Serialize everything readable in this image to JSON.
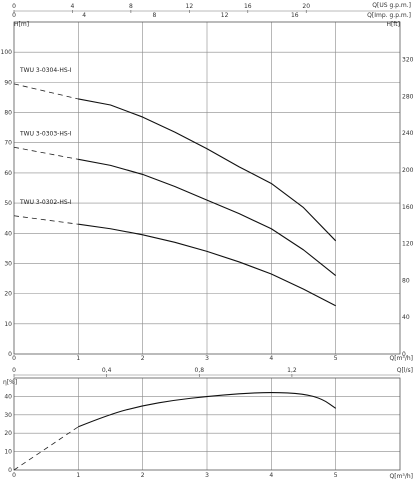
{
  "chart_data": [
    {
      "type": "line",
      "title": "",
      "xlabel": "Q[m³/h]",
      "ylabel": "H[m]",
      "ylabel_right": "H[ft]",
      "top_axis_1_label": "Q[US g.p.m.]",
      "top_axis_2_label": "Q[Imp. g.p.m.]",
      "xlim": [
        0,
        6
      ],
      "ylim": [
        0,
        110
      ],
      "x_ticks": [
        "0",
        "1",
        "2",
        "3",
        "4",
        "5"
      ],
      "y_ticks": [
        "0",
        "10",
        "20",
        "30",
        "40",
        "50",
        "60",
        "70",
        "80",
        "90",
        "100"
      ],
      "y_right_ticks": [
        "0",
        "40",
        "80",
        "120",
        "160",
        "200",
        "240",
        "280",
        "320"
      ],
      "top_us_ticks": [
        "0",
        "4",
        "8",
        "12",
        "16",
        "20"
      ],
      "top_imp_ticks": [
        "0",
        "4",
        "8",
        "12",
        "16"
      ],
      "grid": true,
      "series": [
        {
          "name": "TWU 3-0304-HS-I",
          "x": [
            1.0,
            1.5,
            2.0,
            2.5,
            3.0,
            3.5,
            4.0,
            4.5,
            5.0
          ],
          "y": [
            84.5,
            82.5,
            78.5,
            73.5,
            68.0,
            62.0,
            56.5,
            48.5,
            37.5
          ],
          "extrapolation": {
            "x": [
              0,
              1.0
            ],
            "y": [
              89.5,
              84.5
            ]
          }
        },
        {
          "name": "TWU 3-0303-HS-I",
          "x": [
            1.0,
            1.5,
            2.0,
            2.5,
            3.0,
            3.5,
            4.0,
            4.5,
            5.0
          ],
          "y": [
            64.5,
            62.5,
            59.5,
            55.5,
            51.0,
            46.5,
            41.5,
            34.5,
            26.0
          ],
          "extrapolation": {
            "x": [
              0,
              1.0
            ],
            "y": [
              68.5,
              64.5
            ]
          }
        },
        {
          "name": "TWU 3-0302-HS-I",
          "x": [
            1.0,
            1.5,
            2.0,
            2.5,
            3.0,
            3.5,
            4.0,
            4.5,
            5.0
          ],
          "y": [
            43.0,
            41.5,
            39.5,
            37.0,
            34.0,
            30.5,
            26.5,
            21.5,
            16.0
          ],
          "extrapolation": {
            "x": [
              0,
              1.0
            ],
            "y": [
              45.8,
              43.0
            ]
          }
        }
      ]
    },
    {
      "type": "line",
      "title": "",
      "xlabel": "Q[m³/h]",
      "ylabel": "η[%]",
      "top_axis_label": "Q[l/s]",
      "xlim": [
        0,
        6
      ],
      "ylim": [
        0,
        50
      ],
      "x_ticks": [
        "0",
        "1",
        "2",
        "3",
        "4",
        "5"
      ],
      "y_ticks": [
        "0",
        "10",
        "20",
        "30",
        "40"
      ],
      "top_ls_ticks": [
        "0",
        "0,4",
        "0,8",
        "1,2"
      ],
      "grid": true,
      "series": [
        {
          "name": "",
          "x": [
            1.0,
            1.5,
            2.0,
            2.5,
            3.0,
            3.5,
            4.0,
            4.5,
            4.8,
            5.0
          ],
          "y": [
            23.5,
            30.5,
            35.0,
            38.0,
            40.0,
            41.5,
            42.3,
            41.5,
            38.5,
            33.5
          ],
          "extrapolation": {
            "x": [
              0,
              1.0
            ],
            "y": [
              0,
              23.5
            ]
          }
        }
      ]
    }
  ]
}
